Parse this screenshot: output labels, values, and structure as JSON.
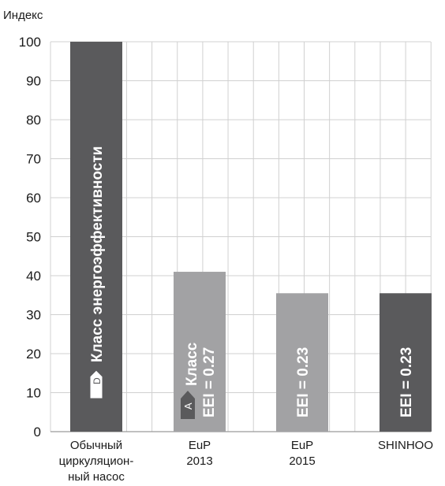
{
  "chart_data": {
    "type": "bar",
    "ylabel": "Индекс",
    "ylim": [
      0,
      100
    ],
    "yticks": [
      "0",
      "10",
      "20",
      "30",
      "40",
      "50",
      "60",
      "70",
      "80",
      "90",
      "100"
    ],
    "grid": true,
    "categories": [
      [
        "Обычный",
        "циркуляцион-",
        "ный насос"
      ],
      [
        "EuP",
        "2013"
      ],
      [
        "EuP",
        "2015"
      ],
      [
        "SHINHOO"
      ]
    ],
    "values": [
      100,
      41,
      35.5,
      35.5
    ],
    "bar_colors": [
      "#5a5a5c",
      "#a2a2a4",
      "#a2a2a4",
      "#5a5a5c"
    ],
    "bar_labels": [
      [
        "Класс энергоэффективности"
      ],
      [
        "Класс",
        "EEI = 0.27"
      ],
      [
        "EEI = 0.23"
      ],
      [
        "EEI = 0.23"
      ]
    ],
    "class_badges": [
      "D",
      "A",
      null,
      null
    ]
  }
}
